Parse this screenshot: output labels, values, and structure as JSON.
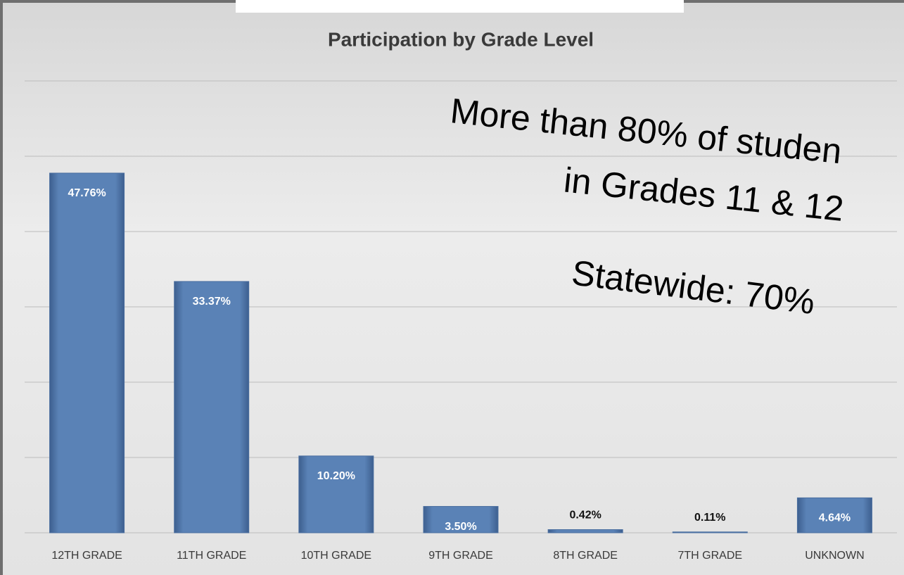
{
  "chart_data": {
    "type": "bar",
    "title": "Participation by Grade Level",
    "categories": [
      "12TH GRADE",
      "11TH GRADE",
      "10TH GRADE",
      "9TH GRADE",
      "8TH GRADE",
      "7TH GRADE",
      "UNKNOWN"
    ],
    "values": [
      47.76,
      33.37,
      10.2,
      3.5,
      0.42,
      0.11,
      4.64
    ],
    "value_labels": [
      "47.76%",
      "33.37%",
      "10.20%",
      "3.50%",
      "0.42%",
      "0.11%",
      "4.64%"
    ],
    "color": "#5a82b6",
    "ylim": [
      0,
      60
    ],
    "yticks": [
      0,
      10,
      20,
      30,
      40,
      50,
      60
    ],
    "grid": true,
    "annotations": [
      "More than 80% of studen",
      "in Grades 11 & 12",
      "Statewide: 70%"
    ]
  }
}
